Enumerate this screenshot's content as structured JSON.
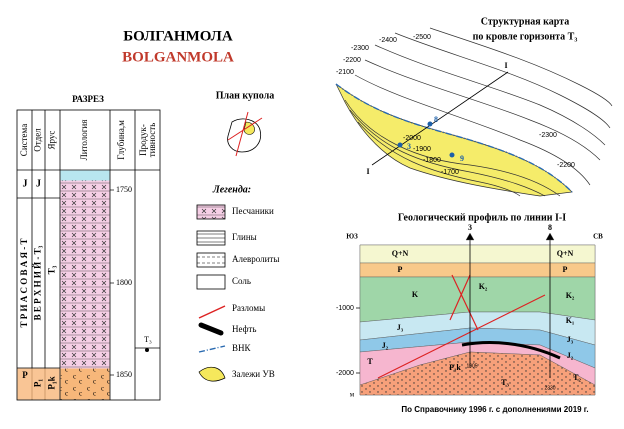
{
  "header": {
    "title": "БОЛГАНМОЛА",
    "subtitle": "BOLGANMOLA"
  },
  "section": {
    "title": "РАЗРЕЗ",
    "columns": [
      "Система",
      "Отдел",
      "Ярус",
      "Литология",
      "Глубина,м"
    ],
    "productivity_header": [
      "Продук-",
      "тивность"
    ],
    "system": [
      "J",
      "Т Р И А С О В А Я - Т",
      "P"
    ],
    "series": [
      "J",
      "В Е Р Х Н И Й - Т₃",
      "P₁"
    ],
    "stage": [
      "Т₃",
      "P₁k"
    ],
    "depths": [
      "1750",
      "1800",
      "1850"
    ],
    "productive": "Т₃"
  },
  "dome_plan": {
    "title": "План купола"
  },
  "legend": {
    "title": "Легенда:",
    "items": [
      "Песчаники",
      "Глины",
      "Алевролиты",
      "Соль",
      "Разломы",
      "Нефть",
      "ВНК",
      "Залежи УВ"
    ]
  },
  "map": {
    "title": [
      "Структурная карта",
      "по кровле горизонта Т₃"
    ],
    "contours": [
      "-2400",
      "-2500",
      "-2300",
      "-2200",
      "-2100",
      "-2300",
      "-2200",
      "-2000",
      "-1900",
      "-1800",
      "-1700"
    ],
    "wells": [
      "8",
      "3",
      "9"
    ],
    "line_ends": [
      "I",
      "I"
    ]
  },
  "profile": {
    "title": "Геологический профиль по линии I-I",
    "directions": [
      "ЮЗ",
      "СВ"
    ],
    "wells": [
      "3",
      "8"
    ],
    "depths": [
      "-1000",
      "-2000",
      "м"
    ],
    "layers": [
      "Q+N",
      "Q+N",
      "P",
      "P",
      "K",
      "K₂",
      "K₂",
      "K₁",
      "J₃",
      "J₃",
      "J₂",
      "J₂",
      "T",
      "P₁k",
      "T₃",
      "T₂"
    ],
    "well_depths": [
      "1905",
      "2330"
    ]
  },
  "footer": "По Справочнику 1996 г. с дополнениями 2019 г."
}
